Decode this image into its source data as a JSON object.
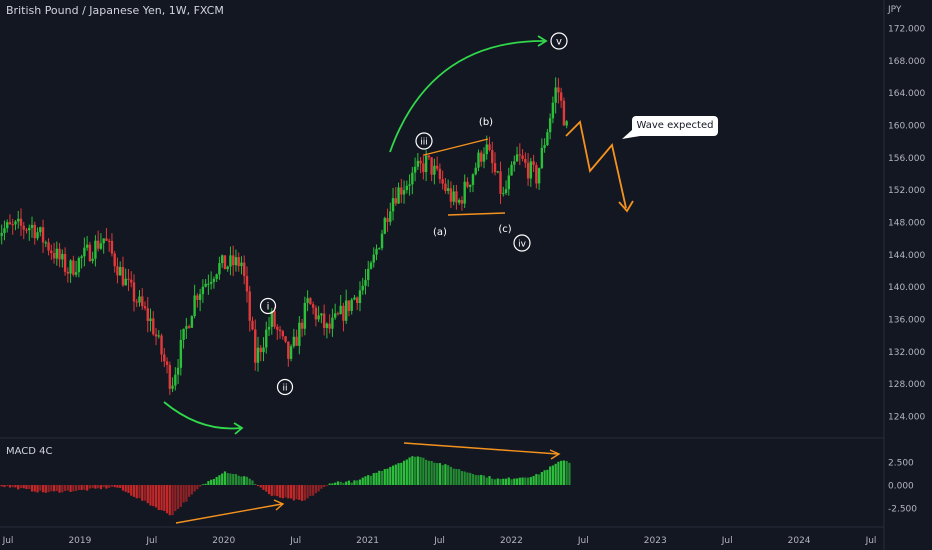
{
  "header": {
    "symbol_title": "British Pound / Japanese Yen, 1W, FXCM"
  },
  "indicator": {
    "title": "MACD 4C"
  },
  "price_axis": {
    "unit": "JPY",
    "ticks": [
      "172.000",
      "168.000",
      "164.000",
      "160.000",
      "156.000",
      "152.000",
      "148.000",
      "144.000",
      "140.000",
      "136.000",
      "132.000",
      "128.000",
      "124.000"
    ]
  },
  "macd_axis": {
    "ticks": [
      "2.500",
      "0.000",
      "-2.500"
    ]
  },
  "time_axis": {
    "ticks": [
      "Jul",
      "2019",
      "Jul",
      "2020",
      "Jul",
      "2021",
      "Jul",
      "2022",
      "Jul",
      "2023",
      "Jul",
      "2024",
      "Jul"
    ]
  },
  "annotations": {
    "wave_i": "i",
    "wave_ii": "ii",
    "wave_iii": "iii",
    "wave_iv": "iv",
    "wave_v": "v",
    "wave_a": "(a)",
    "wave_b": "(b)",
    "wave_c": "(c)",
    "callout": "Wave expected"
  },
  "colors": {
    "background": "#131722",
    "bull": "#26a69a",
    "candle_up": "#2bbf3a",
    "candle_down": "#e03a3a",
    "macd_up": "#2bbf3a",
    "macd_down": "#c62828",
    "trend_arrow": "#31d84a",
    "projection": "#f5921e",
    "divergence": "#f5921e"
  },
  "chart_data": {
    "type": "candlestick",
    "title": "British Pound / Japanese Yen, 1W, FXCM",
    "ylim": [
      121.0,
      173.5
    ],
    "anchor_closes": [
      [
        "2018-06-01",
        147.0
      ],
      [
        "2018-09-01",
        147.5
      ],
      [
        "2018-12-01",
        142.0
      ],
      [
        "2019-03-01",
        146.0
      ],
      [
        "2019-05-01",
        140.0
      ],
      [
        "2019-07-01",
        135.5
      ],
      [
        "2019-08-20",
        128.0
      ],
      [
        "2019-10-20",
        139.0
      ],
      [
        "2019-12-15",
        142.5
      ],
      [
        "2020-02-15",
        143.0
      ],
      [
        "2020-03-20",
        131.0
      ],
      [
        "2020-05-01",
        136.0
      ],
      [
        "2020-06-15",
        131.0
      ],
      [
        "2020-08-01",
        138.0
      ],
      [
        "2020-09-20",
        134.5
      ],
      [
        "2020-11-01",
        137.0
      ],
      [
        "2021-01-01",
        141.0
      ],
      [
        "2021-03-01",
        151.0
      ],
      [
        "2021-05-30",
        155.5
      ],
      [
        "2021-08-15",
        150.0
      ],
      [
        "2021-10-25",
        157.5
      ],
      [
        "2021-12-10",
        151.0
      ],
      [
        "2022-01-15",
        156.0
      ],
      [
        "2022-03-05",
        153.5
      ],
      [
        "2022-04-25",
        165.0
      ],
      [
        "2022-05-25",
        158.5
      ]
    ],
    "macd_histogram": [
      [
        "2018-06-01",
        0.0
      ],
      [
        "2018-10-01",
        -0.8
      ],
      [
        "2019-01-01",
        -0.6
      ],
      [
        "2019-04-01",
        -0.2
      ],
      [
        "2019-08-20",
        -3.3
      ],
      [
        "2019-11-01",
        -0.2
      ],
      [
        "2020-01-01",
        1.5
      ],
      [
        "2020-03-01",
        0.8
      ],
      [
        "2020-05-01",
        -1.2
      ],
      [
        "2020-07-20",
        -1.8
      ],
      [
        "2020-10-01",
        0.3
      ],
      [
        "2020-12-01",
        0.4
      ],
      [
        "2021-05-01",
        3.2
      ],
      [
        "2021-09-01",
        1.5
      ],
      [
        "2021-12-01",
        0.6
      ],
      [
        "2022-03-01",
        1.0
      ],
      [
        "2022-05-15",
        2.8
      ],
      [
        "2022-05-31",
        2.3
      ]
    ]
  }
}
